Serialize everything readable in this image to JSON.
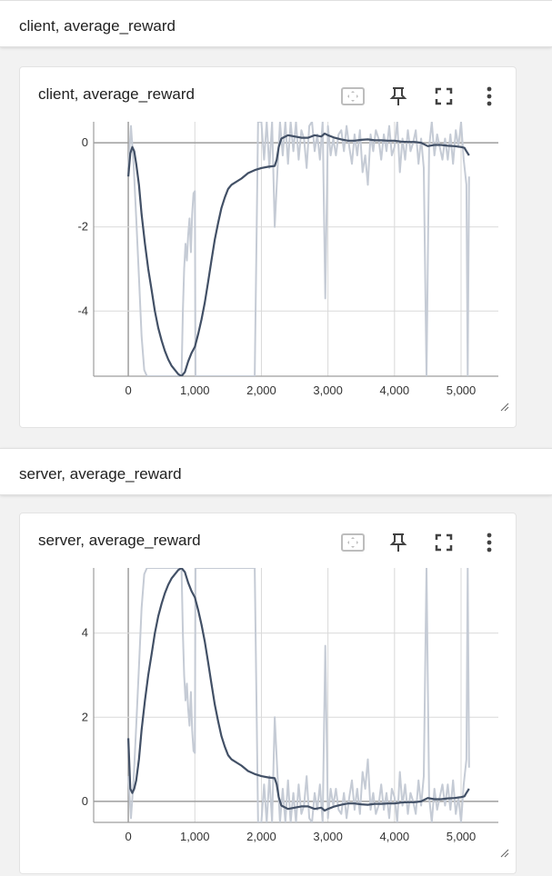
{
  "groups": [
    {
      "header": "client, average_reward",
      "card_title": "client, average_reward",
      "toolbar": [
        "fit-domain-icon",
        "pin-icon",
        "fullscreen-icon",
        "more-vert-icon"
      ]
    },
    {
      "header": "server, average_reward",
      "card_title": "server, average_reward",
      "toolbar": [
        "fit-domain-icon",
        "pin-icon",
        "fullscreen-icon",
        "more-vert-icon"
      ]
    }
  ],
  "colors": {
    "smoothed": "#425066",
    "raw": "#c5cbd5",
    "grid": "#d9d9d9",
    "zero_line": "#9e9e9e",
    "icon": "#424242",
    "icon_disabled": "#bdbdbd"
  },
  "chart_data": [
    {
      "type": "line",
      "title": "client, average_reward",
      "xlabel": "",
      "ylabel": "",
      "xlim": [
        -520,
        5560
      ],
      "ylim": [
        -5.55,
        0.5
      ],
      "xticks": [
        0,
        1000,
        2000,
        3000,
        4000,
        5000
      ],
      "xtick_labels": [
        "0",
        "1,000",
        "2,000",
        "3,000",
        "4,000",
        "5,000"
      ],
      "yticks": [
        0,
        -2,
        -4
      ],
      "ytick_labels": [
        "0",
        "-2",
        "-4"
      ],
      "grid": true,
      "series": [
        {
          "role": "smoothed",
          "x": [
            0,
            30,
            60,
            90,
            120,
            160,
            200,
            250,
            300,
            350,
            400,
            450,
            500,
            550,
            600,
            650,
            700,
            750,
            800,
            850,
            900,
            950,
            1000,
            1050,
            1100,
            1150,
            1200,
            1250,
            1300,
            1350,
            1400,
            1450,
            1500,
            1550,
            1600,
            1700,
            1800,
            1900,
            2000,
            2100,
            2200,
            2230,
            2260,
            2300,
            2400,
            2500,
            2600,
            2700,
            2800,
            2900,
            2950,
            3000,
            3100,
            3200,
            3300,
            3400,
            3500,
            3600,
            3700,
            3800,
            3900,
            4000,
            4100,
            4200,
            4300,
            4400,
            4500,
            4600,
            4700,
            4800,
            4900,
            5000,
            5050,
            5080,
            5120
          ],
          "y": [
            -0.8,
            -0.25,
            -0.1,
            -0.2,
            -0.5,
            -1.0,
            -1.7,
            -2.4,
            -3.0,
            -3.5,
            -4.0,
            -4.4,
            -4.7,
            -4.95,
            -5.15,
            -5.3,
            -5.4,
            -5.5,
            -5.55,
            -5.45,
            -5.2,
            -5.0,
            -4.85,
            -4.55,
            -4.2,
            -3.8,
            -3.3,
            -2.8,
            -2.3,
            -1.9,
            -1.55,
            -1.3,
            -1.1,
            -1.0,
            -0.95,
            -0.85,
            -0.72,
            -0.65,
            -0.6,
            -0.57,
            -0.55,
            -0.4,
            -0.1,
            0.1,
            0.18,
            0.15,
            0.12,
            0.12,
            0.18,
            0.15,
            0.22,
            0.18,
            0.12,
            0.08,
            0.05,
            0.05,
            0.07,
            0.08,
            0.06,
            0.06,
            0.05,
            0.05,
            0.03,
            0.02,
            0.02,
            0.0,
            -0.08,
            -0.05,
            -0.05,
            -0.07,
            -0.08,
            -0.1,
            -0.12,
            -0.2,
            -0.3
          ]
        },
        {
          "role": "raw",
          "x": [
            0,
            40,
            80,
            120,
            160,
            200,
            240,
            280,
            320,
            360,
            400,
            500,
            600,
            700,
            760,
            800,
            820,
            840,
            860,
            880,
            900,
            920,
            940,
            960,
            980,
            1000,
            1010,
            1030,
            1060,
            1100,
            1200,
            1300,
            1400,
            1500,
            1600,
            1700,
            1800,
            1850,
            1900,
            1950,
            2000,
            2040,
            2080,
            2120,
            2160,
            2200,
            2240,
            2280,
            2320,
            2360,
            2400,
            2440,
            2480,
            2520,
            2560,
            2600,
            2640,
            2680,
            2720,
            2760,
            2800,
            2840,
            2880,
            2920,
            2960,
            3000,
            3040,
            3080,
            3120,
            3160,
            3200,
            3240,
            3280,
            3320,
            3360,
            3400,
            3440,
            3480,
            3520,
            3560,
            3600,
            3640,
            3680,
            3720,
            3760,
            3800,
            3840,
            3880,
            3920,
            3960,
            4000,
            4040,
            4080,
            4120,
            4160,
            4200,
            4240,
            4280,
            4320,
            4360,
            4400,
            4440,
            4480,
            4520,
            4560,
            4600,
            4640,
            4680,
            4720,
            4760,
            4800,
            4840,
            4880,
            4920,
            4960,
            5000,
            5040,
            5080,
            5100,
            5120
          ],
          "y": [
            -0.6,
            0.4,
            -0.5,
            -1.8,
            -3.2,
            -4.6,
            -5.4,
            -5.55,
            -5.55,
            -5.55,
            -5.55,
            -5.55,
            -5.55,
            -5.55,
            -5.55,
            -5.55,
            -4.0,
            -3.0,
            -2.4,
            -2.8,
            -2.2,
            -1.8,
            -2.6,
            -1.7,
            -1.2,
            -1.15,
            -5.55,
            -5.55,
            -5.55,
            -5.55,
            -5.55,
            -5.55,
            -5.55,
            -5.55,
            -5.55,
            -5.55,
            -5.55,
            -5.55,
            -5.55,
            0.5,
            0.5,
            -0.4,
            0.5,
            -0.6,
            0.5,
            -2.0,
            -0.7,
            0.5,
            -0.3,
            0.5,
            -0.5,
            0.5,
            -0.2,
            0.5,
            -0.4,
            0.3,
            0.1,
            -0.6,
            0.4,
            0.5,
            -0.2,
            0.2,
            -0.4,
            0.5,
            -3.7,
            0.4,
            -0.3,
            0.1,
            -0.3,
            0.2,
            0.3,
            -0.2,
            0.4,
            -0.1,
            -0.5,
            0.2,
            -0.3,
            0.3,
            -0.7,
            -0.3,
            -1.0,
            0.2,
            -0.2,
            0.3,
            0.1,
            -0.4,
            0.2,
            -0.2,
            0.4,
            -0.3,
            -0.1,
            0.5,
            -0.7,
            0.1,
            -0.4,
            0.3,
            -0.2,
            0.0,
            0.3,
            -0.5,
            0.1,
            -0.6,
            -5.55,
            -0.1,
            0.5,
            -0.3,
            0.2,
            -0.1,
            -0.4,
            0.1,
            -0.4,
            0.2,
            -0.5,
            0.3,
            -0.1,
            0.5,
            -0.4,
            -1.0,
            -5.55,
            -0.8
          ]
        }
      ]
    },
    {
      "type": "line",
      "title": "server, average_reward",
      "xlabel": "",
      "ylabel": "",
      "xlim": [
        -520,
        5560
      ],
      "ylim": [
        -0.5,
        5.55
      ],
      "xticks": [
        0,
        1000,
        2000,
        3000,
        4000,
        5000
      ],
      "xtick_labels": [
        "0",
        "1,000",
        "2,000",
        "3,000",
        "4,000",
        "5,000"
      ],
      "yticks": [
        4,
        2,
        0
      ],
      "ytick_labels": [
        "4",
        "2",
        "0"
      ],
      "grid": true,
      "series": [
        {
          "role": "smoothed",
          "x": [
            0,
            30,
            60,
            90,
            120,
            160,
            200,
            250,
            300,
            350,
            400,
            450,
            500,
            550,
            600,
            650,
            700,
            750,
            800,
            850,
            900,
            950,
            1000,
            1050,
            1100,
            1150,
            1200,
            1250,
            1300,
            1350,
            1400,
            1450,
            1500,
            1550,
            1600,
            1700,
            1800,
            1900,
            2000,
            2100,
            2200,
            2230,
            2260,
            2300,
            2400,
            2500,
            2600,
            2700,
            2800,
            2900,
            2950,
            3000,
            3100,
            3200,
            3300,
            3400,
            3500,
            3600,
            3700,
            3800,
            3900,
            4000,
            4100,
            4200,
            4300,
            4400,
            4500,
            4600,
            4700,
            4800,
            4900,
            5000,
            5050,
            5080,
            5120
          ],
          "y": [
            1.5,
            0.3,
            0.2,
            0.3,
            0.5,
            1.0,
            1.7,
            2.4,
            3.0,
            3.5,
            4.0,
            4.4,
            4.7,
            4.95,
            5.15,
            5.3,
            5.4,
            5.5,
            5.55,
            5.45,
            5.2,
            5.0,
            4.85,
            4.55,
            4.2,
            3.8,
            3.3,
            2.8,
            2.3,
            1.9,
            1.55,
            1.3,
            1.1,
            1.0,
            0.95,
            0.85,
            0.72,
            0.65,
            0.6,
            0.57,
            0.55,
            0.4,
            0.1,
            -0.1,
            -0.18,
            -0.15,
            -0.12,
            -0.12,
            -0.18,
            -0.15,
            -0.22,
            -0.18,
            -0.12,
            -0.08,
            -0.05,
            -0.05,
            -0.07,
            -0.08,
            -0.06,
            -0.06,
            -0.05,
            -0.05,
            -0.03,
            -0.02,
            -0.02,
            0.0,
            0.08,
            0.05,
            0.05,
            0.07,
            0.08,
            0.1,
            0.12,
            0.2,
            0.3
          ]
        },
        {
          "role": "raw",
          "x": [
            0,
            40,
            80,
            120,
            160,
            200,
            240,
            280,
            320,
            360,
            400,
            500,
            600,
            700,
            760,
            800,
            820,
            840,
            860,
            880,
            900,
            920,
            940,
            960,
            980,
            1000,
            1010,
            1030,
            1060,
            1100,
            1200,
            1300,
            1400,
            1500,
            1600,
            1700,
            1800,
            1850,
            1900,
            1950,
            2000,
            2040,
            2080,
            2120,
            2160,
            2200,
            2240,
            2280,
            2320,
            2360,
            2400,
            2440,
            2480,
            2520,
            2560,
            2600,
            2640,
            2680,
            2720,
            2760,
            2800,
            2840,
            2880,
            2920,
            2960,
            3000,
            3040,
            3080,
            3120,
            3160,
            3200,
            3240,
            3280,
            3320,
            3360,
            3400,
            3440,
            3480,
            3520,
            3560,
            3600,
            3640,
            3680,
            3720,
            3760,
            3800,
            3840,
            3880,
            3920,
            3960,
            4000,
            4040,
            4080,
            4120,
            4160,
            4200,
            4240,
            4280,
            4320,
            4360,
            4400,
            4440,
            4480,
            4520,
            4560,
            4600,
            4640,
            4680,
            4720,
            4760,
            4800,
            4840,
            4880,
            4920,
            4960,
            5000,
            5040,
            5080,
            5100,
            5120
          ],
          "y": [
            0.6,
            -0.4,
            0.5,
            1.8,
            3.2,
            4.6,
            5.4,
            5.55,
            5.55,
            5.55,
            5.55,
            5.55,
            5.55,
            5.55,
            5.55,
            5.55,
            4.0,
            3.0,
            2.4,
            2.8,
            2.2,
            1.8,
            2.6,
            1.7,
            1.2,
            1.15,
            5.55,
            5.55,
            5.55,
            5.55,
            5.55,
            5.55,
            5.55,
            5.55,
            5.55,
            5.55,
            5.55,
            5.55,
            5.55,
            -0.5,
            -0.5,
            0.4,
            -0.5,
            0.6,
            -0.5,
            2.0,
            0.7,
            -0.5,
            0.3,
            -0.5,
            0.5,
            -0.5,
            0.2,
            -0.5,
            0.4,
            -0.3,
            -0.1,
            0.6,
            -0.4,
            -0.5,
            0.2,
            -0.2,
            0.4,
            -0.5,
            3.7,
            -0.4,
            0.3,
            -0.1,
            0.3,
            -0.2,
            -0.3,
            0.2,
            -0.4,
            0.1,
            0.5,
            -0.2,
            0.3,
            -0.3,
            0.7,
            0.3,
            1.0,
            -0.2,
            0.2,
            -0.3,
            -0.1,
            0.4,
            -0.2,
            0.2,
            -0.4,
            0.3,
            0.1,
            -0.5,
            0.7,
            -0.1,
            0.4,
            -0.3,
            0.2,
            0.0,
            -0.3,
            0.5,
            -0.1,
            0.6,
            5.55,
            0.1,
            -0.5,
            0.3,
            -0.2,
            0.1,
            0.4,
            -0.1,
            0.4,
            -0.2,
            0.5,
            -0.3,
            0.1,
            -0.5,
            0.4,
            1.0,
            5.55,
            0.8
          ]
        }
      ]
    }
  ]
}
